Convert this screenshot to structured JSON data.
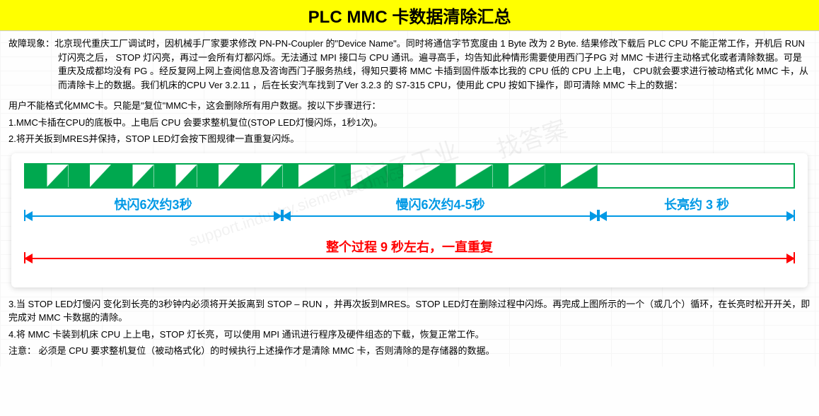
{
  "title": "PLC MMC 卡数据清除汇总",
  "fault_label": "故障现象：",
  "fault_text": "北京现代重庆工厂调试时，因机械手厂家要求修改 PN-PN-Coupler 的\"Device Name\"。同时将通信字节宽度由 1 Byte 改为 2 Byte. 结果修改下载后 PLC CPU 不能正常工作，开机后 RUN 灯闪亮之后， STOP 灯闪亮，再过一会所有灯都闪烁。无法通过 MPI 接口与 CPU 通讯。遍寻高手，均告知此种情形需要使用西门子PG 对 MMC 卡进行主动格式化或者清除数据。可是重庆及成都均没有 PG 。经反复网上网上查阅信息及咨询西门子服务热线，得知只要将 MMC 卡插到固件版本比我的 CPU 低的 CPU 上上电， CPU就会要求进行被动格式化 MMC 卡，从而清除卡上的数据。我们机床的CPU Ver 3.2.11 ，后在长安汽车找到了Ver 3.2.3 的 S7-315 CPU，使用此 CPU 按如下操作，即可清除 MMC 卡上的数据：",
  "steps_intro": "用户不能格式化MMC卡。只能是\"复位\"MMC卡，这会删除所有用户数据。按以下步骤进行：",
  "step1": "1.MMC卡插在CPU的底板中。上电后 CPU 会要求整机复位(STOP LED灯慢闪烁，1秒1次)。",
  "step2": "2.将开关扳到MRES并保持，STOP LED灯会按下图规律一直重复闪烁。",
  "diagram": {
    "fast": {
      "count": 6,
      "width_pct": 33.5,
      "label": "快闪6次约3秒",
      "green_ratio": 50
    },
    "slow": {
      "count": 6,
      "width_pct": 41,
      "label": "慢闪6次约4-5秒",
      "green_ratio": 30
    },
    "steady": {
      "width_pct": 25.5,
      "label": "长亮约 3 秒"
    },
    "total_label": "整个过程 9 秒左右，一直重复",
    "green": "#00a84f",
    "blue": "#0099e5",
    "red": "#ff0000"
  },
  "step3": "3.当 STOP LED灯慢闪 变化到长亮的3秒钟内必须将开关扳离到 STOP – RUN ，并再次扳到MRES。STOP LED灯在删除过程中闪烁。再完成上图所示的一个（或几个）循环，在长亮时松开开关，即完成对 MMC 卡数据的清除。",
  "step4": "4.将 MMC 卡装到机床 CPU 上上电，STOP 灯长亮，可以使用 MPI 通讯进行程序及硬件组态的下载，恢复正常工作。",
  "note": "注意： 必须是 CPU 要求整机复位（被动格式化）的时候执行上述操作才是清除 MMC 卡，否则清除的是存储器的数据。",
  "watermarks": [
    "西门子工业",
    "找答案",
    "support.industry.siemens.com/cs"
  ]
}
